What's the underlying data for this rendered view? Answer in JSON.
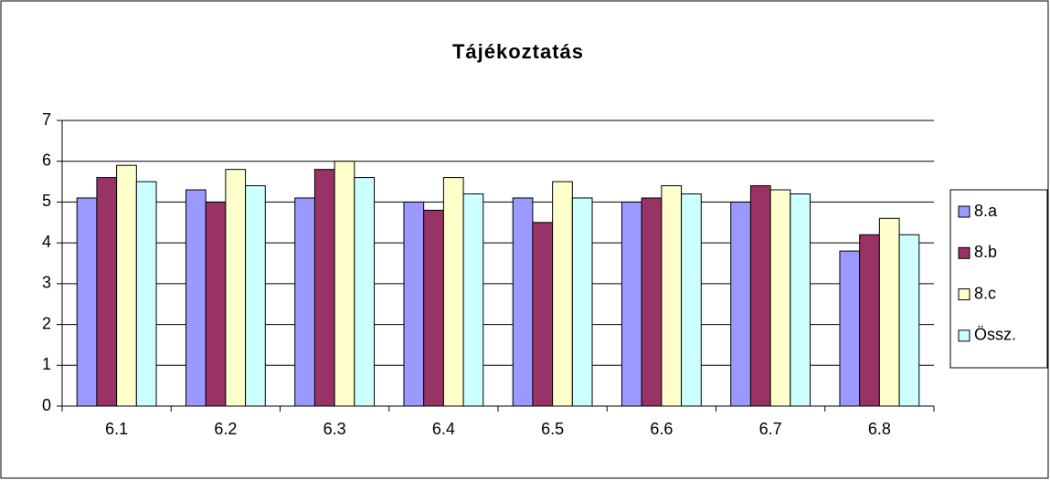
{
  "chart_data": {
    "type": "bar",
    "title": "Tájékoztatás",
    "categories": [
      "6.1",
      "6.2",
      "6.3",
      "6.4",
      "6.5",
      "6.6",
      "6.7",
      "6.8"
    ],
    "series": [
      {
        "name": "8.a",
        "color": "#9999ff",
        "values": [
          5.1,
          5.3,
          5.1,
          5.0,
          5.1,
          5.0,
          5.0,
          3.8
        ]
      },
      {
        "name": "8.b",
        "color": "#993366",
        "values": [
          5.6,
          5.0,
          5.8,
          4.8,
          4.5,
          5.1,
          5.4,
          4.2
        ]
      },
      {
        "name": "8.c",
        "color": "#ffffcc",
        "values": [
          5.9,
          5.8,
          6.0,
          5.6,
          5.5,
          5.4,
          5.3,
          4.6
        ]
      },
      {
        "name": "Össz.",
        "color": "#ccffff",
        "values": [
          5.5,
          5.4,
          5.6,
          5.2,
          5.1,
          5.2,
          5.2,
          4.2
        ]
      }
    ],
    "ylim": [
      0,
      7
    ],
    "yticks": [
      0,
      1,
      2,
      3,
      4,
      5,
      6,
      7
    ],
    "grid": true,
    "legend": "right"
  }
}
